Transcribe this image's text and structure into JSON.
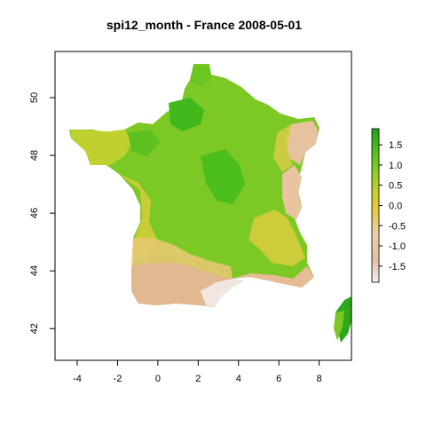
{
  "title": "spi12_month - France 2008-05-01",
  "x_ticks": [
    -4,
    -2,
    0,
    2,
    4,
    6,
    8
  ],
  "y_ticks": [
    42,
    44,
    46,
    48,
    50
  ],
  "x_range": [
    -5.1,
    9.6
  ],
  "y_range": [
    40.9,
    51.6
  ],
  "legend": {
    "ticks": [
      1.5,
      1.0,
      0.5,
      0.0,
      -0.5,
      -1.0,
      -1.5
    ],
    "tick_labels": [
      "1.5",
      "1.0",
      "0.5",
      "0.0",
      "-0.5",
      "-1.0",
      "-1.5"
    ],
    "range": [
      -1.9,
      1.9
    ],
    "colors": [
      "#f6f0f0",
      "#e4c0a4",
      "#ead2a8",
      "#e8c83a",
      "#c8d030",
      "#8ccc26",
      "#4cc01c",
      "#1fa21a"
    ]
  }
}
